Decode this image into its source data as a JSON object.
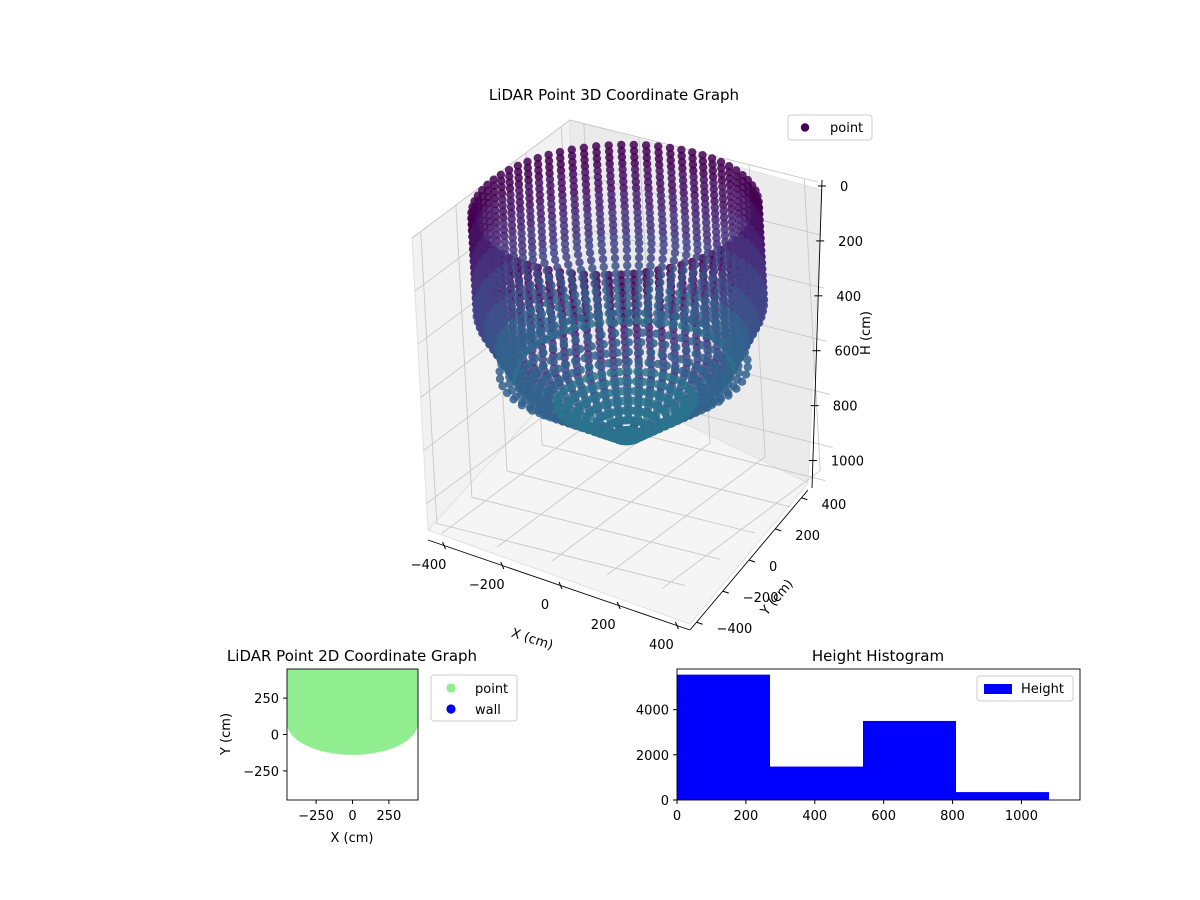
{
  "chart_data": [
    {
      "type": "scatter3d",
      "title": "LiDAR Point 3D Coordinate Graph",
      "xlabel": "X (cm)",
      "ylabel": "Y (cm)",
      "zlabel": "H (cm)",
      "xlim": [
        -450,
        450
      ],
      "ylim": [
        -450,
        450
      ],
      "zlim": [
        0,
        1100
      ],
      "z_inverted": true,
      "x_ticks": [
        -400,
        -200,
        0,
        200,
        400
      ],
      "y_ticks": [
        -400,
        -200,
        0,
        200,
        400
      ],
      "z_ticks": [
        0,
        200,
        400,
        600,
        800,
        1000
      ],
      "legend": [
        "point"
      ],
      "legend_position": "top-right",
      "colormap": "viridis",
      "shape": "cylindrical wall of points, radius approx 450 cm, depth 0 to approx 850 cm, narrowing at bottom",
      "grid": true
    },
    {
      "type": "scatter",
      "title": "LiDAR Point 2D Coordinate Graph",
      "xlabel": "X (cm)",
      "ylabel": "Y (cm)",
      "xlim": [
        -450,
        450
      ],
      "ylim": [
        -450,
        450
      ],
      "x_ticks": [
        -250,
        0,
        250
      ],
      "y_ticks": [
        -250,
        0,
        250
      ],
      "series": [
        {
          "name": "point",
          "color": "#90ee90"
        },
        {
          "name": "wall",
          "color": "#0000ff"
        }
      ],
      "legend_position": "outside-right"
    },
    {
      "type": "bar",
      "title": "Height Histogram",
      "xlim": [
        0,
        1170
      ],
      "ylim": [
        0,
        5800
      ],
      "x_ticks": [
        0,
        200,
        400,
        600,
        800,
        1000
      ],
      "y_ticks": [
        0,
        2000,
        4000
      ],
      "bin_edges": [
        0,
        270,
        540,
        810,
        1080
      ],
      "values": [
        5550,
        1480,
        3500,
        350
      ],
      "series": [
        {
          "name": "Height",
          "color": "#0000ff"
        }
      ],
      "legend_position": "top-right"
    }
  ]
}
